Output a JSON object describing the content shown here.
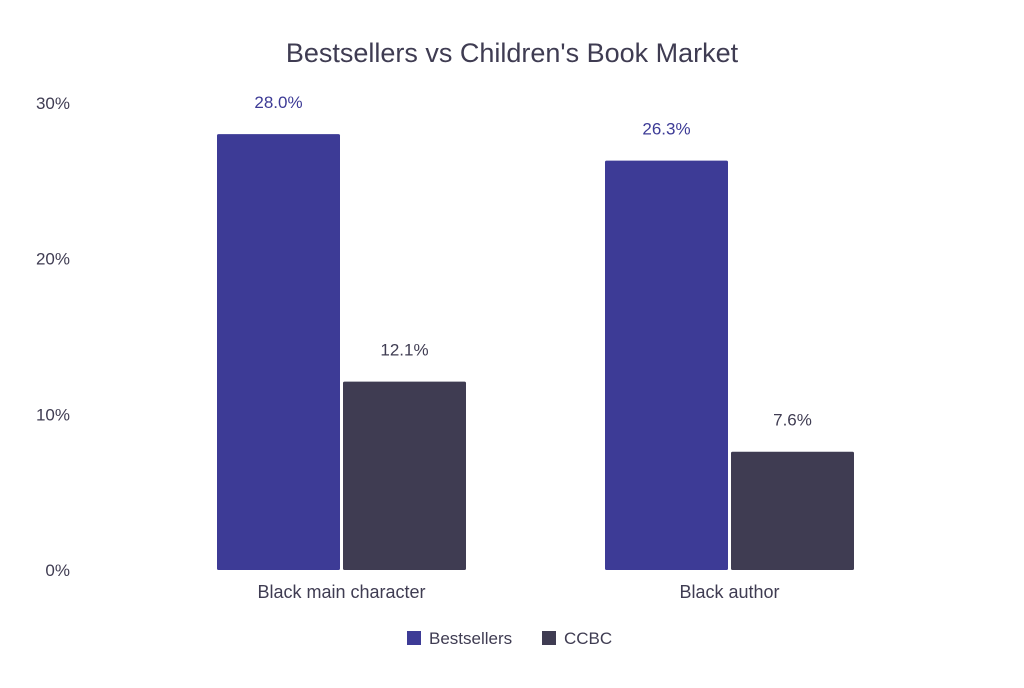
{
  "chart_data": {
    "type": "bar",
    "title": "Bestsellers vs Children's Book Market",
    "categories": [
      "Black main character",
      "Black author"
    ],
    "series": [
      {
        "name": "Bestsellers",
        "values": [
          28.0,
          26.3
        ],
        "labels": [
          "28.0%",
          "26.3%"
        ],
        "color": "#3d3b96",
        "label_color": "#3d3b96"
      },
      {
        "name": "CCBC",
        "values": [
          12.1,
          7.6
        ],
        "labels": [
          "12.1%",
          "7.6%"
        ],
        "color": "#3f3c52",
        "label_color": "#3f3c52"
      }
    ],
    "ylim": [
      0,
      30
    ],
    "yticks": [
      0,
      10,
      20,
      30
    ],
    "ytick_labels": [
      "0%",
      "10%",
      "20%",
      "30%"
    ],
    "grid": false,
    "legend_position": "bottom"
  }
}
